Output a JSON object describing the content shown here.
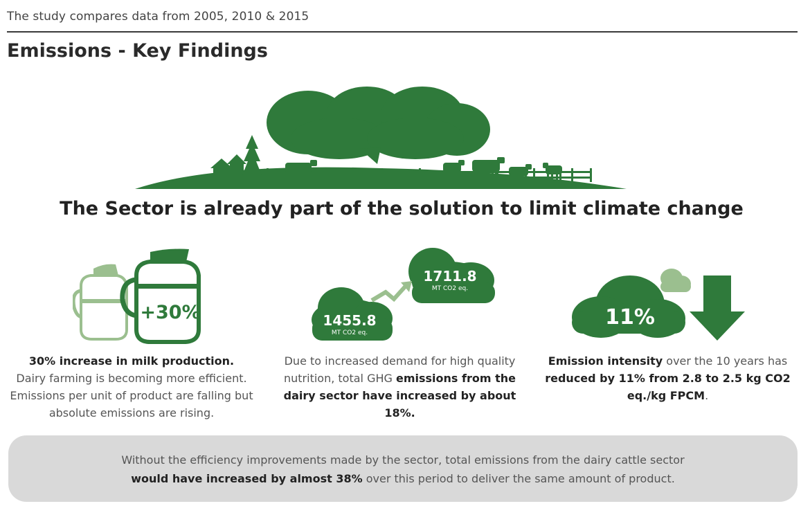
{
  "header": {
    "note": "The study compares data from 2005, 2010 & 2015",
    "title": "Emissions - Key Findings"
  },
  "headline": "The Sector is already part of the solution to limit climate change",
  "colors": {
    "green": "#2f7a3b",
    "light_green": "#9bbf8f",
    "dark_text": "#222222",
    "footer_bg": "#d9d9d9"
  },
  "milk": {
    "badge": "+30%",
    "title": "30% increase in milk production.",
    "body": "Dairy farming is becoming more efficient. Emissions per unit of product are falling but absolute emissions  are rising."
  },
  "emissions": {
    "low_value": "1455.8",
    "low_unit": "MT CO2 eq.",
    "high_value": "1711.8",
    "high_unit": "MT CO2 eq.",
    "text_plain": "Due to increased demand for high quality nutrition, total GHG ",
    "text_bold": "emissions from the dairy sector have increased by about 18%."
  },
  "intensity": {
    "value": "11%",
    "bold_start": "Emission intensity",
    "plain": " over the 10 years has ",
    "bold_end": "reduced by 11% from 2.8 to 2.5 kg CO2 eq./kg FPCM",
    "end": "."
  },
  "footer": {
    "plain1": "Without the efficiency improvements made by the sector, total emissions from the dairy cattle sector",
    "bold": "would have increased by almost 38%",
    "plain2": " over this period to deliver the same amount of product."
  }
}
